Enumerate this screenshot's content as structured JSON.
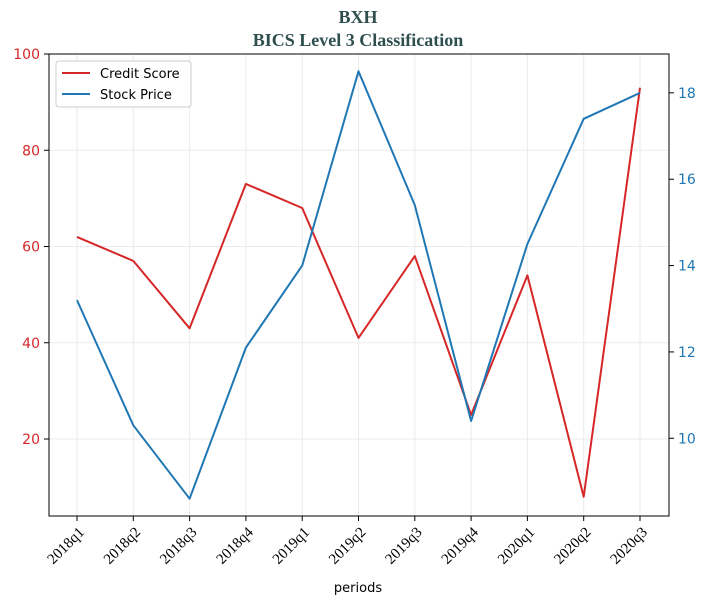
{
  "chart_data": {
    "type": "line",
    "title": "BXH",
    "subtitle": "BICS Level 3 Classification",
    "xlabel": "periods",
    "categories": [
      "2018q1",
      "2018q2",
      "2018q3",
      "2018q4",
      "2019q1",
      "2019q2",
      "2019q3",
      "2019q4",
      "2020q1",
      "2020q2",
      "2020q3"
    ],
    "y_left": {
      "ylim": [
        4,
        100
      ],
      "ticks": [
        20,
        40,
        60,
        80,
        100
      ],
      "color": "#d62728"
    },
    "y_right": {
      "ylim": [
        8.2,
        18.9
      ],
      "ticks": [
        10,
        12,
        14,
        16,
        18
      ],
      "color": "#1f77b4"
    },
    "series": [
      {
        "name": "Credit Score",
        "axis": "left",
        "color": "#d62728",
        "values": [
          62,
          57,
          43,
          73,
          68,
          41,
          58,
          25,
          54,
          8,
          93
        ]
      },
      {
        "name": "Stock Price",
        "axis": "right",
        "color": "#1f77b4",
        "values": [
          13.2,
          10.3,
          8.6,
          12.1,
          14.0,
          18.5,
          15.4,
          10.4,
          14.5,
          17.4,
          18.0
        ]
      }
    ],
    "grid": true,
    "legend": "top-left"
  }
}
